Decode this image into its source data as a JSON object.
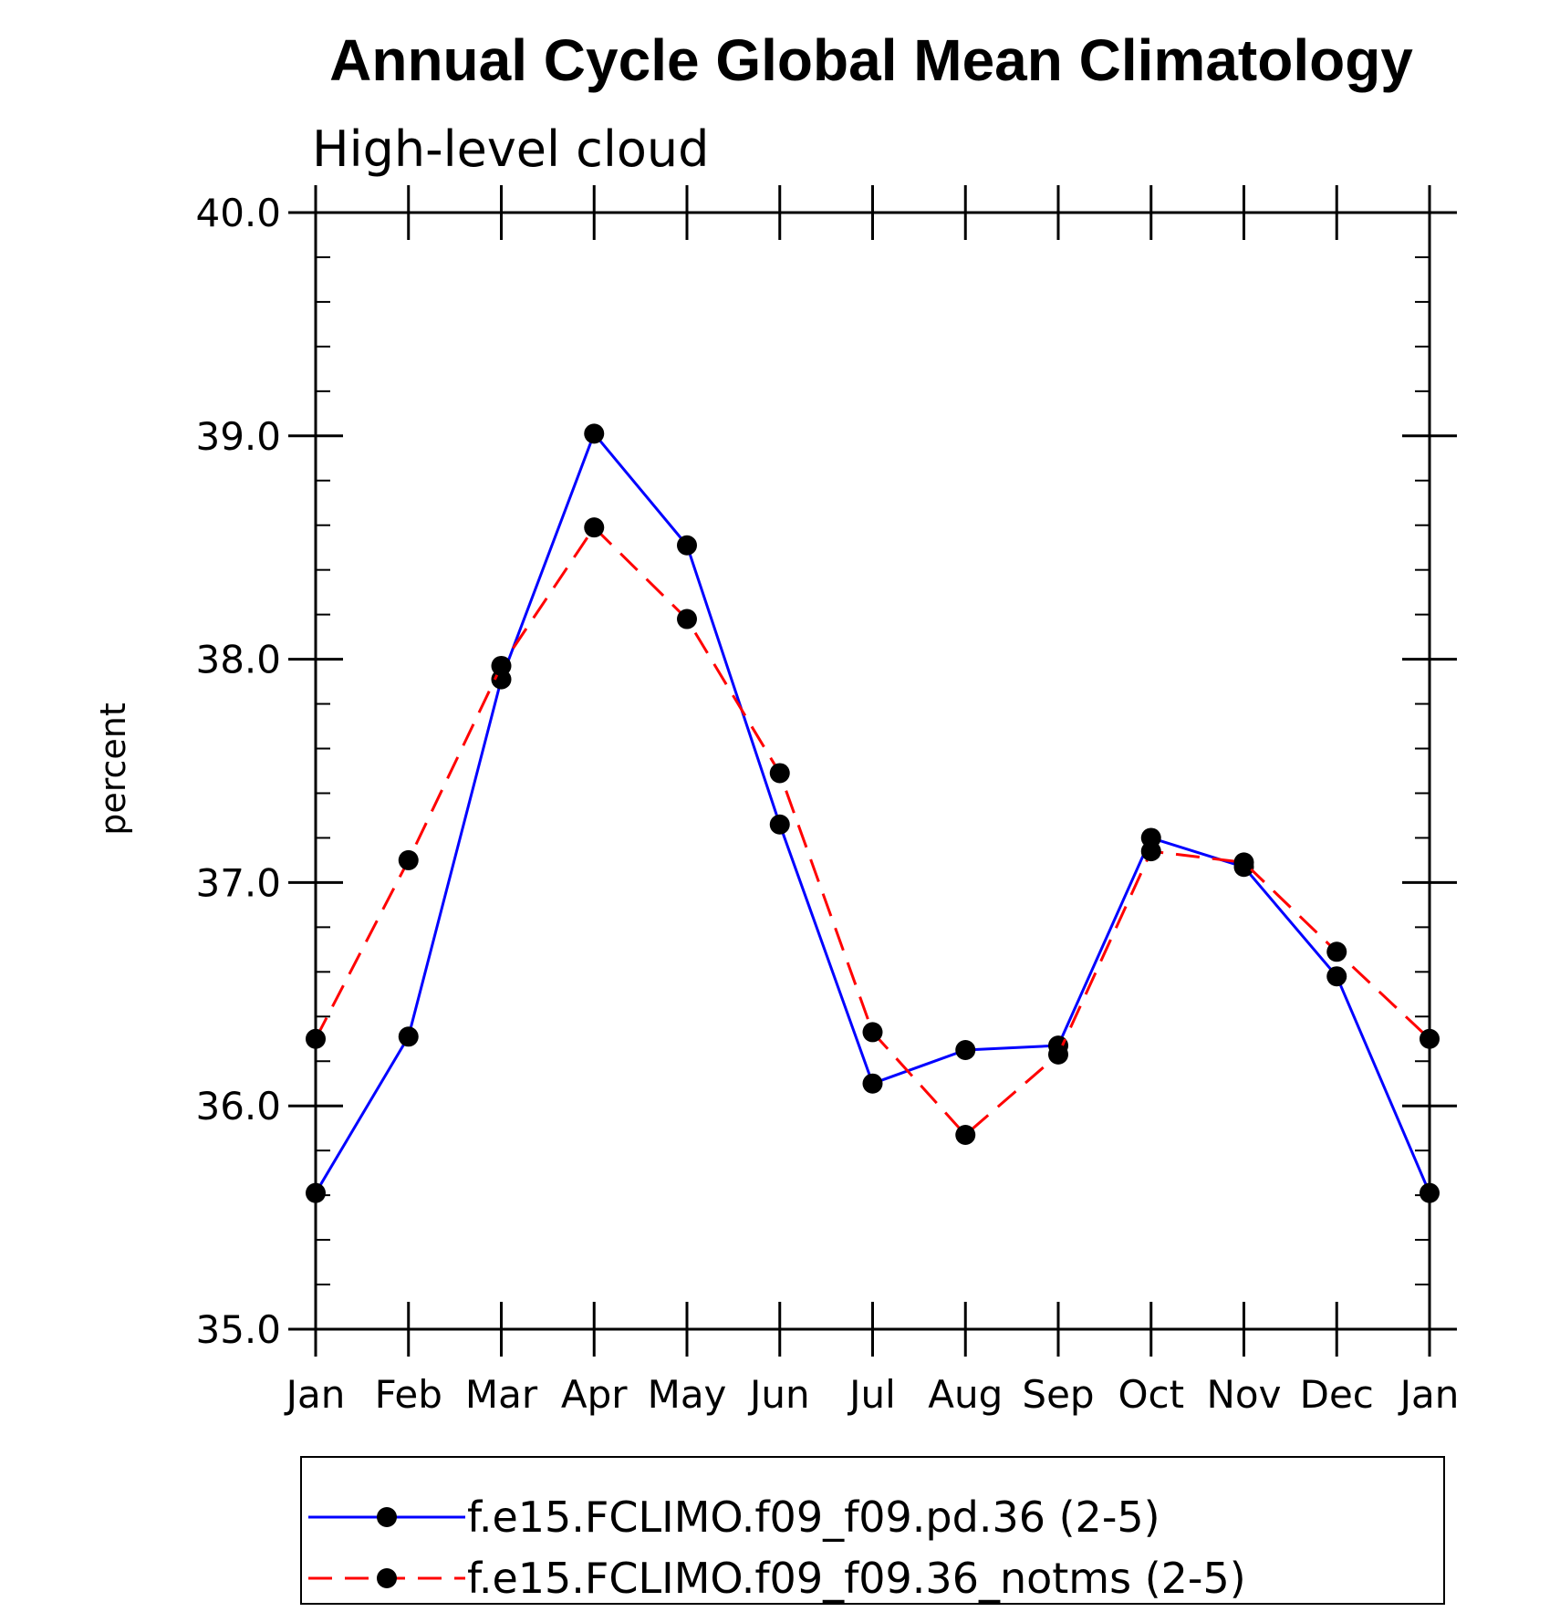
{
  "chart_data": {
    "type": "line",
    "title": "Annual Cycle Global Mean Climatology",
    "subtitle": "High-level cloud",
    "ylabel": "percent",
    "xlabel": "",
    "categories": [
      "Jan",
      "Feb",
      "Mar",
      "Apr",
      "May",
      "Jun",
      "Jul",
      "Aug",
      "Sep",
      "Oct",
      "Nov",
      "Dec",
      "Jan"
    ],
    "ylim": [
      35.0,
      40.0
    ],
    "yticks": [
      "35.0",
      "36.0",
      "37.0",
      "38.0",
      "39.0",
      "40.0"
    ],
    "y_minor_step": 0.2,
    "grid": false,
    "legend_position": "bottom",
    "series": [
      {
        "name": "f.e15.FCLIMO.f09_f09.pd.36 (2-5)",
        "color": "#0000ff",
        "dash": "solid",
        "marker": "filled-circle",
        "values": [
          35.61,
          36.31,
          37.91,
          39.01,
          38.51,
          37.26,
          36.1,
          36.25,
          36.27,
          37.2,
          37.07,
          36.58,
          35.61
        ]
      },
      {
        "name": "f.e15.FCLIMO.f09_f09.36_notms (2-5)",
        "color": "#ff0000",
        "dash": "dashed",
        "marker": "filled-circle",
        "values": [
          36.3,
          37.1,
          37.97,
          38.59,
          38.18,
          37.49,
          36.33,
          35.87,
          36.23,
          37.14,
          37.09,
          36.69,
          36.3
        ]
      }
    ]
  }
}
